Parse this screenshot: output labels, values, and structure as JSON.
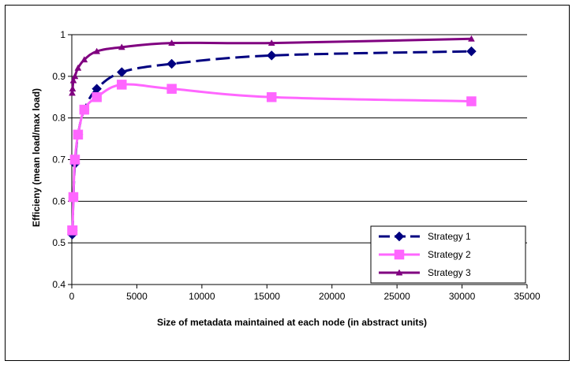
{
  "chart_data": {
    "type": "line",
    "title": "",
    "xlabel": "Size of metadata maintained at each node (in abstract units)",
    "ylabel": "Efficieny (mean load/max load)",
    "xlim": [
      0,
      35000
    ],
    "ylim": [
      0.4,
      1.0
    ],
    "xticks": [
      0,
      5000,
      10000,
      15000,
      20000,
      25000,
      30000,
      35000
    ],
    "yticks": [
      0.4,
      0.5,
      0.6,
      0.7,
      0.8,
      0.9,
      1.0
    ],
    "xtick_labels": [
      "0",
      "5000",
      "10000",
      "15000",
      "20000",
      "25000",
      "30000",
      "35000"
    ],
    "ytick_labels": [
      "0.4",
      "0.5",
      "0.6",
      "0.7",
      "0.8",
      "0.9",
      "1"
    ],
    "grid": "horizontal",
    "legend_position": "bottom-right",
    "series": [
      {
        "name": "Strategy 1",
        "color": "#000080",
        "marker": "diamond",
        "line_style": "dashed",
        "x": [
          30,
          60,
          120,
          240,
          480,
          960,
          1920,
          3840,
          7680,
          15360,
          30720
        ],
        "y": [
          0.52,
          0.53,
          0.61,
          0.69,
          0.76,
          0.82,
          0.87,
          0.91,
          0.93,
          0.95,
          0.96
        ]
      },
      {
        "name": "Strategy 2",
        "color": "#ff66ff",
        "marker": "square",
        "line_style": "solid",
        "x": [
          30,
          60,
          120,
          240,
          480,
          960,
          1920,
          3840,
          7680,
          15360,
          30720
        ],
        "y": [
          0.53,
          0.53,
          0.61,
          0.7,
          0.76,
          0.82,
          0.85,
          0.88,
          0.87,
          0.85,
          0.84
        ]
      },
      {
        "name": "Strategy 3",
        "color": "#800080",
        "marker": "triangle",
        "line_style": "solid",
        "x": [
          30,
          60,
          120,
          240,
          480,
          960,
          1920,
          3840,
          7680,
          15360,
          30720
        ],
        "y": [
          0.86,
          0.87,
          0.89,
          0.9,
          0.92,
          0.94,
          0.96,
          0.97,
          0.98,
          0.98,
          0.99
        ]
      }
    ]
  }
}
